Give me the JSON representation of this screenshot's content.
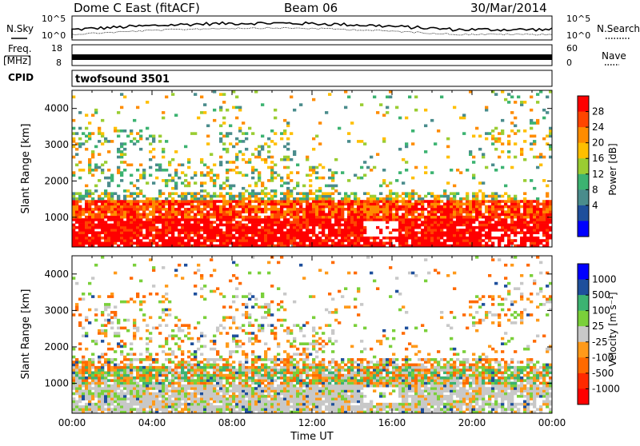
{
  "header": {
    "title": "Dome C East (fitACF)",
    "beam": "Beam 06",
    "date": "30/Mar/2014"
  },
  "top_panels": {
    "nsky_label": "N.Sky",
    "nsearch_label": "N.Search",
    "freq_label": "Freq.",
    "freq_unit": "[MHz]",
    "nave_label": "Nave",
    "cpid_label": "CPID",
    "cpid_value": "twofsound 3501",
    "left_ticks_nsky": [
      "10^5",
      "10^0"
    ],
    "right_ticks_nsky": [
      "10^5",
      "10^0"
    ],
    "left_ticks_freq": [
      "18",
      "8"
    ],
    "right_ticks_nave": [
      "60",
      "0"
    ]
  },
  "chart_data": [
    {
      "type": "heatmap",
      "name": "power",
      "ylabel": "Slant Range [km]",
      "xlabel": "",
      "ylim": [
        180,
        4500
      ],
      "y_ticks": [
        1000,
        2000,
        3000,
        4000
      ],
      "x_range_hours": [
        0,
        24
      ],
      "colorbar": {
        "label": "Power [dB]",
        "ticks": [
          "28",
          "24",
          "20",
          "16",
          "12",
          "8",
          "4"
        ],
        "colors": [
          "#ff0000",
          "#ff4500",
          "#ff8c00",
          "#ffbf00",
          "#9acd32",
          "#3cb371",
          "#4a8c8c",
          "#1e4f9c",
          "#0000ff"
        ]
      }
    },
    {
      "type": "heatmap",
      "name": "velocity",
      "ylabel": "Slant Range [km]",
      "xlabel": "Time UT",
      "ylim": [
        180,
        4500
      ],
      "y_ticks": [
        1000,
        2000,
        3000,
        4000
      ],
      "x_range_hours": [
        0,
        24
      ],
      "x_ticks": [
        "00:00",
        "04:00",
        "08:00",
        "12:00",
        "16:00",
        "20:00",
        "00:00"
      ],
      "colorbar": {
        "label": "Velocity [m s⁻¹]",
        "ticks": [
          "1000",
          "500",
          "100",
          "25",
          "-25",
          "-100",
          "-500",
          "-1000"
        ],
        "colors": [
          "#0000ff",
          "#1e4f9c",
          "#3cb371",
          "#7ad03a",
          "#c8c8c8",
          "#ff9a1a",
          "#ff6a00",
          "#ff2a00",
          "#ff0000"
        ]
      }
    }
  ]
}
